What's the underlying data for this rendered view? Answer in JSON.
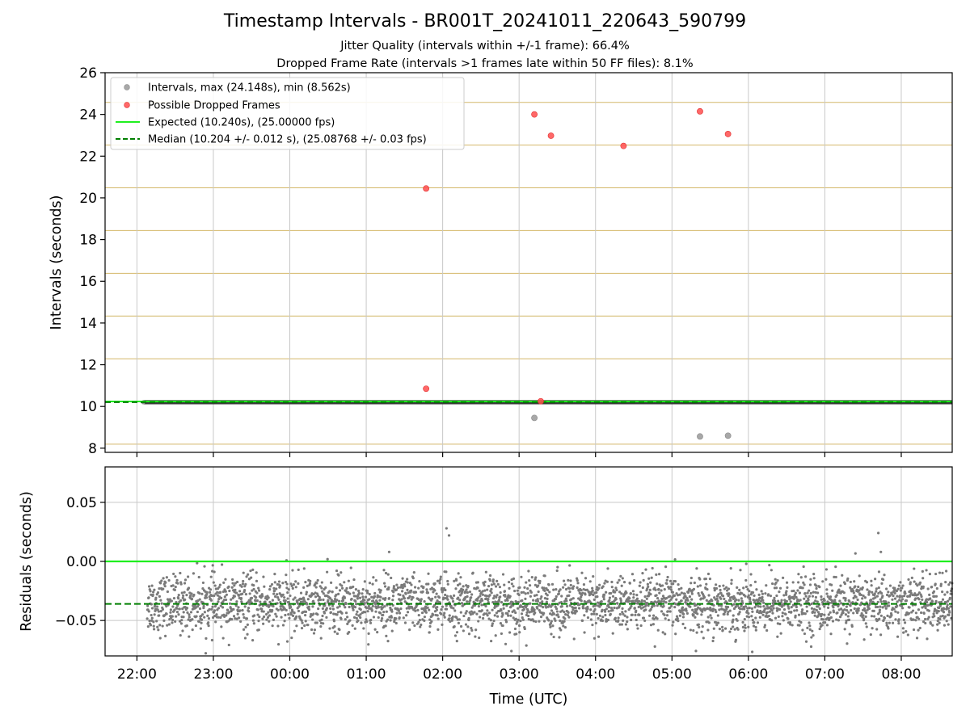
{
  "title": "Timestamp Intervals - BR001T_20241011_220643_590799",
  "subtitles": [
    "Jitter Quality (intervals within +/-1 frame): 66.4%",
    "Dropped Frame Rate (intervals >1 frames late within 50 FF files): 8.1%"
  ],
  "colors": {
    "intervals": "#999999",
    "dropped": "#ff4d4d",
    "expected": "#1fef1f",
    "median": "#007f00",
    "band": "#3a3a3a",
    "frame_lines": "#d4b86a",
    "grid": "#c8c8c8",
    "residuals": "#7a7a7a"
  },
  "chart_data": [
    {
      "type": "scatter",
      "name": "intervals",
      "xlabel": "",
      "ylabel": "Intervals (seconds)",
      "xlim": [
        "21:35",
        "08:40"
      ],
      "ylim": [
        7.8,
        26
      ],
      "yticks": [
        8,
        10,
        12,
        14,
        16,
        18,
        20,
        22,
        24,
        26
      ],
      "grid": "vertical",
      "frame_lines_every": 2.048,
      "legend_placement": "upper-left",
      "legend": [
        {
          "label": "Intervals, max (24.148s), min (8.562s)",
          "kind": "point",
          "color": "intervals"
        },
        {
          "label": "Possible Dropped Frames",
          "kind": "point",
          "color": "dropped"
        },
        {
          "label": "Expected (10.240s), (25.00000 fps)",
          "kind": "solid",
          "color": "expected"
        },
        {
          "label": "Median (10.204 +/- 0.012 s), (25.08768 +/- 0.03 fps)",
          "kind": "dashed",
          "color": "median"
        }
      ],
      "expected_value": 10.24,
      "median_value": 10.204,
      "continuous_band": {
        "x_start": "22:05",
        "x_end": "08:40",
        "y": 10.204,
        "thickness": 0.2
      },
      "series": [
        {
          "name": "Possible Dropped Frames",
          "x": [
            "01:47",
            "03:12",
            "03:25",
            "04:22",
            "05:22",
            "05:44",
            "01:47",
            "03:17"
          ],
          "y": [
            20.45,
            24.0,
            22.98,
            22.49,
            24.148,
            23.06,
            10.85,
            10.25
          ]
        },
        {
          "name": "Intervals, max (24.148s), min (8.562s)",
          "x": [
            "03:12",
            "05:22",
            "05:44"
          ],
          "y": [
            9.45,
            8.562,
            8.6
          ]
        }
      ]
    },
    {
      "type": "scatter",
      "name": "residuals",
      "xlabel": "Time (UTC)",
      "ylabel": "Residuals (seconds)",
      "xlim": [
        "21:35",
        "08:40"
      ],
      "ylim": [
        -0.08,
        0.08
      ],
      "yticks": [
        0.05,
        0.0,
        -0.05
      ],
      "ytick_labels": [
        "0.05",
        "0.00",
        "−0.05"
      ],
      "xticks": [
        "22:00",
        "23:00",
        "00:00",
        "01:00",
        "02:00",
        "03:00",
        "04:00",
        "05:00",
        "06:00",
        "07:00",
        "08:00"
      ],
      "grid": "both",
      "expected_residual": 0.0,
      "median_residual": -0.036,
      "cloud": {
        "x_start": "22:08",
        "x_end": "08:40",
        "center": -0.036,
        "spread": 0.012
      },
      "outliers": {
        "x": [
          "02:05",
          "02:03",
          "07:42",
          "01:18",
          "07:44"
        ],
        "y": [
          0.022,
          0.028,
          0.024,
          0.008,
          0.008
        ]
      }
    }
  ]
}
